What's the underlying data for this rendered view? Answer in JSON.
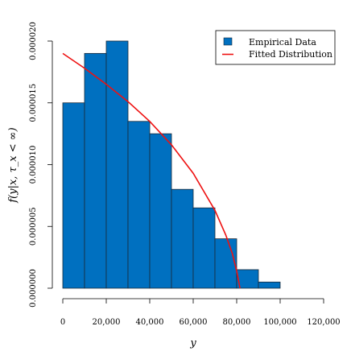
{
  "chart_data": {
    "type": "bar",
    "subtype": "histogram",
    "bin_edges": [
      0,
      10000,
      20000,
      30000,
      40000,
      50000,
      60000,
      70000,
      80000,
      90000,
      100000
    ],
    "values": [
      1.5e-05,
      1.9e-05,
      2e-05,
      1.35e-05,
      1.25e-05,
      8e-06,
      6.5e-06,
      4e-06,
      1.5e-06,
      5e-07
    ],
    "fitted_curve": {
      "x": [
        0,
        10000,
        20000,
        30000,
        40000,
        50000,
        60000,
        70000,
        75000,
        78000,
        80000,
        81500
      ],
      "y": [
        1.9e-05,
        1.78e-05,
        1.65e-05,
        1.51e-05,
        1.35e-05,
        1.16e-05,
        9.3e-06,
        6.3e-06,
        4.3e-06,
        2.8e-06,
        1.4e-06,
        0.0
      ]
    },
    "xlabel": "y",
    "ylabel": "f(y|x, τ_x < ∞)",
    "xlim": [
      0,
      120000
    ],
    "ylim": [
      0,
      2e-05
    ],
    "x_ticks": [
      0,
      20000,
      40000,
      60000,
      80000,
      100000,
      120000
    ],
    "x_tick_labels": [
      "0",
      "20,000",
      "40,000",
      "60,000",
      "80,000",
      "100,000",
      "120,000"
    ],
    "y_ticks": [
      0,
      5e-06,
      1e-05,
      1.5e-05,
      2e-05
    ],
    "y_tick_labels": [
      "0.000000",
      "0.000005",
      "0.000010",
      "0.000015",
      "0.000020"
    ],
    "legend": {
      "position": "top-right",
      "entries": [
        {
          "label": "Empirical Data",
          "kind": "box"
        },
        {
          "label": "Fitted Distribution",
          "kind": "line"
        }
      ]
    },
    "grid": false,
    "colors": {
      "bar": "#0070C0",
      "bar_edge": "#1a2a3a",
      "curve": "#EE1111",
      "axis": "#000000"
    }
  }
}
